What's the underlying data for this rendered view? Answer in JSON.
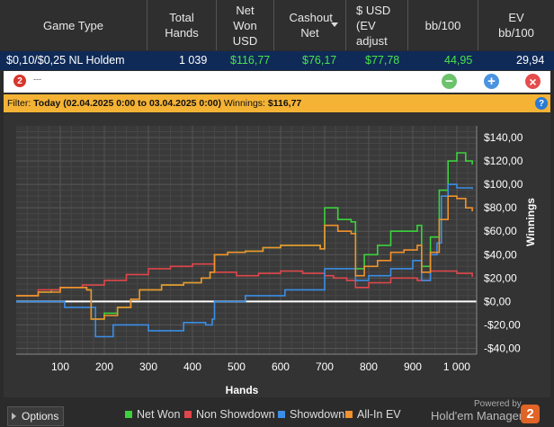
{
  "header": {
    "columns": [
      {
        "label": "Game Type"
      },
      {
        "label": "Total Hands"
      },
      {
        "label": "Net Won USD"
      },
      {
        "label": "Cashout Net"
      },
      {
        "label": "$ USD (EV adjust"
      },
      {
        "label": "bb/100"
      },
      {
        "label": "EV bb/100"
      }
    ]
  },
  "row": {
    "game": "$0,10/$0,25 NL Holdem",
    "hands": "1 039",
    "net_won": "$116,77",
    "cashout": "$76,17",
    "ev_adjusted": "$77,78",
    "bb100": "44,95",
    "ev_bb100": "29,94"
  },
  "toolbar": {
    "logo": "2",
    "text": "---",
    "minus": "−",
    "plus": "+",
    "close": "×"
  },
  "filter": {
    "label": "Filter:",
    "range": "Today (02.04.2025 0:00 to 03.04.2025 0:00)",
    "winnings_label": "Winnings:",
    "winnings_value": "$116,77",
    "help": "?"
  },
  "colors": {
    "net_won": "#3cd23c",
    "non_showdown": "#e0464b",
    "showdown": "#3a8ee6",
    "all_in_ev": "#f0922e"
  },
  "chart_data": {
    "type": "line",
    "xlabel": "Hands",
    "ylabel": "Winnings",
    "xlim": [
      0,
      1045
    ],
    "ylim": [
      -45,
      150
    ],
    "x_ticks": [
      100,
      200,
      300,
      400,
      500,
      600,
      700,
      800,
      900,
      1000
    ],
    "x_tick_labels": [
      "100",
      "200",
      "300",
      "400",
      "500",
      "600",
      "700",
      "800",
      "900",
      "1 000"
    ],
    "y_ticks": [
      -40,
      -20,
      0,
      20,
      40,
      60,
      80,
      100,
      120,
      140
    ],
    "y_tick_labels": [
      "-$40,00",
      "-$20,00",
      "$0,00",
      "$20,00",
      "$40,00",
      "$60,00",
      "$80,00",
      "$100,00",
      "$120,00",
      "$140,00"
    ],
    "legend": "bottom",
    "grid": true,
    "series": [
      {
        "name": "Net Won",
        "color": "#3cd23c",
        "points": [
          [
            0,
            5
          ],
          [
            50,
            8
          ],
          [
            80,
            10
          ],
          [
            100,
            12
          ],
          [
            160,
            10
          ],
          [
            170,
            -15
          ],
          [
            200,
            -10
          ],
          [
            230,
            -5
          ],
          [
            260,
            2
          ],
          [
            280,
            10
          ],
          [
            330,
            14
          ],
          [
            380,
            16
          ],
          [
            420,
            20
          ],
          [
            440,
            25
          ],
          [
            450,
            40
          ],
          [
            480,
            42
          ],
          [
            520,
            43
          ],
          [
            560,
            46
          ],
          [
            600,
            48
          ],
          [
            640,
            48
          ],
          [
            690,
            45
          ],
          [
            700,
            80
          ],
          [
            720,
            80
          ],
          [
            730,
            70
          ],
          [
            760,
            68
          ],
          [
            770,
            28
          ],
          [
            790,
            40
          ],
          [
            820,
            48
          ],
          [
            850,
            60
          ],
          [
            880,
            60
          ],
          [
            910,
            65
          ],
          [
            920,
            30
          ],
          [
            940,
            55
          ],
          [
            960,
            95
          ],
          [
            980,
            120
          ],
          [
            1000,
            127
          ],
          [
            1020,
            120
          ],
          [
            1035,
            117
          ]
        ]
      },
      {
        "name": "Non Showdown",
        "color": "#e0464b",
        "points": [
          [
            0,
            5
          ],
          [
            50,
            10
          ],
          [
            100,
            12
          ],
          [
            150,
            14
          ],
          [
            200,
            18
          ],
          [
            250,
            23
          ],
          [
            300,
            28
          ],
          [
            350,
            30
          ],
          [
            400,
            32
          ],
          [
            450,
            25
          ],
          [
            500,
            22
          ],
          [
            550,
            24
          ],
          [
            600,
            26
          ],
          [
            650,
            24
          ],
          [
            700,
            22
          ],
          [
            720,
            20
          ],
          [
            750,
            18
          ],
          [
            770,
            12
          ],
          [
            800,
            16
          ],
          [
            850,
            20
          ],
          [
            880,
            20
          ],
          [
            910,
            18
          ],
          [
            940,
            26
          ],
          [
            960,
            26
          ],
          [
            1000,
            24
          ],
          [
            1035,
            21
          ]
        ]
      },
      {
        "name": "Showdown",
        "color": "#3a8ee6",
        "points": [
          [
            0,
            0
          ],
          [
            100,
            0
          ],
          [
            110,
            -5
          ],
          [
            170,
            -5
          ],
          [
            180,
            -30
          ],
          [
            210,
            -30
          ],
          [
            220,
            -20
          ],
          [
            290,
            -20
          ],
          [
            300,
            -25
          ],
          [
            370,
            -25
          ],
          [
            380,
            -18
          ],
          [
            420,
            -18
          ],
          [
            430,
            -20
          ],
          [
            445,
            -15
          ],
          [
            450,
            0
          ],
          [
            510,
            0
          ],
          [
            520,
            5
          ],
          [
            600,
            5
          ],
          [
            610,
            10
          ],
          [
            680,
            10
          ],
          [
            700,
            28
          ],
          [
            770,
            18
          ],
          [
            800,
            22
          ],
          [
            850,
            28
          ],
          [
            900,
            35
          ],
          [
            920,
            18
          ],
          [
            940,
            40
          ],
          [
            955,
            50
          ],
          [
            965,
            90
          ],
          [
            980,
            100
          ],
          [
            1000,
            97
          ],
          [
            1035,
            96
          ]
        ]
      },
      {
        "name": "All-In EV",
        "color": "#f0922e",
        "points": [
          [
            0,
            5
          ],
          [
            50,
            8
          ],
          [
            100,
            12
          ],
          [
            160,
            10
          ],
          [
            170,
            -15
          ],
          [
            200,
            -12
          ],
          [
            230,
            -5
          ],
          [
            260,
            2
          ],
          [
            280,
            10
          ],
          [
            330,
            14
          ],
          [
            380,
            16
          ],
          [
            420,
            20
          ],
          [
            440,
            25
          ],
          [
            450,
            40
          ],
          [
            480,
            42
          ],
          [
            520,
            43
          ],
          [
            560,
            46
          ],
          [
            600,
            48
          ],
          [
            640,
            48
          ],
          [
            690,
            45
          ],
          [
            700,
            65
          ],
          [
            720,
            65
          ],
          [
            730,
            60
          ],
          [
            760,
            58
          ],
          [
            770,
            22
          ],
          [
            790,
            30
          ],
          [
            820,
            35
          ],
          [
            850,
            42
          ],
          [
            880,
            44
          ],
          [
            910,
            48
          ],
          [
            920,
            25
          ],
          [
            940,
            42
          ],
          [
            960,
            70
          ],
          [
            980,
            90
          ],
          [
            1000,
            88
          ],
          [
            1020,
            80
          ],
          [
            1035,
            77
          ]
        ]
      }
    ]
  },
  "footer": {
    "options_label": "Options",
    "powered_by": "Powered by",
    "brand": "Hold'em Manager",
    "brand_logo": "2"
  }
}
